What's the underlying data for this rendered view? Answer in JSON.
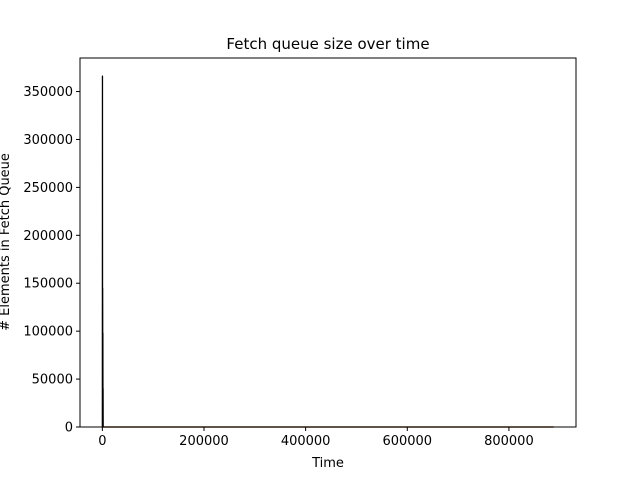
{
  "chart_data": {
    "type": "line",
    "title": "Fetch queue size over time",
    "xlabel": "Time",
    "ylabel": "# Elements in Fetch Queue",
    "xlim": [
      -44000,
      932000
    ],
    "ylim": [
      0,
      385000
    ],
    "xticks": [
      0,
      200000,
      400000,
      600000,
      800000
    ],
    "xtick_labels": [
      "0",
      "200000",
      "400000",
      "600000",
      "800000"
    ],
    "yticks": [
      0,
      50000,
      100000,
      150000,
      200000,
      250000,
      300000,
      350000
    ],
    "ytick_labels": [
      "0",
      "50000",
      "100000",
      "150000",
      "200000",
      "250000",
      "300000",
      "350000"
    ],
    "grid": false,
    "series": [
      {
        "color": "#000000",
        "points": [
          [
            0,
            0
          ],
          [
            200,
            366000
          ],
          [
            400,
            12000
          ],
          [
            600,
            145000
          ],
          [
            800,
            8000
          ],
          [
            1000,
            98000
          ],
          [
            1200,
            3000
          ],
          [
            1400,
            40000
          ],
          [
            1600,
            0
          ],
          [
            888000,
            0
          ]
        ]
      },
      {
        "color": "#ff7f0e",
        "points": [
          [
            0,
            0
          ],
          [
            888000,
            0
          ]
        ]
      }
    ]
  }
}
